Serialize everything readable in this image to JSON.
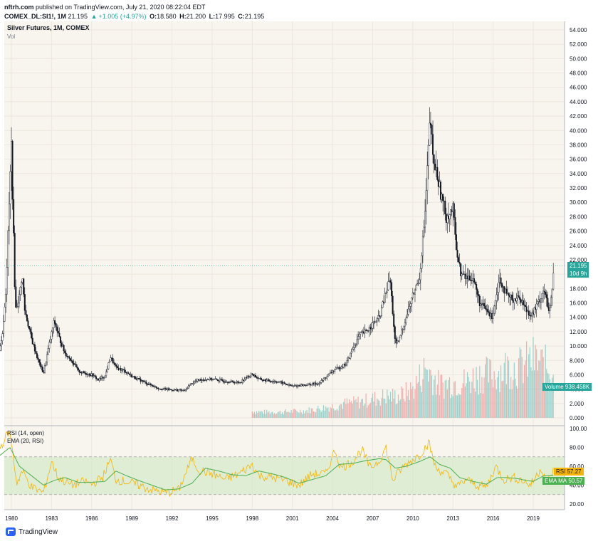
{
  "header": {
    "publisher": "nftrh.com",
    "published_text": "published on TradingView.com, July 21, 2020 08:22:04 EDT",
    "symbol": "COMEX_DL:SI1!, 1M",
    "last": "21.195",
    "change": "+1.005 (+4.97%)",
    "open_label": "O:",
    "open": "18.580",
    "high_label": "H:",
    "high": "21.200",
    "low_label": "L:",
    "low": "17.995",
    "close_label": "C:",
    "close": "21.195"
  },
  "chart_data": {
    "type": "candlestick",
    "title": "Silver Futures, 1M, COMEX",
    "volume_label": "Vol",
    "price_axis": {
      "min": 0,
      "max": 54,
      "ticks": [
        "54.000",
        "52.000",
        "50.000",
        "48.000",
        "46.000",
        "44.000",
        "42.000",
        "40.000",
        "38.000",
        "36.000",
        "34.000",
        "32.000",
        "30.000",
        "28.000",
        "26.000",
        "24.000",
        "22.000",
        "20.000",
        "18.000",
        "16.000",
        "14.000",
        "12.000",
        "10.000",
        "8.000",
        "6.000",
        "4.000",
        "2.000",
        "0.000"
      ]
    },
    "x_ticks": [
      "1980",
      "1983",
      "1986",
      "1989",
      "1992",
      "1995",
      "1998",
      "2001",
      "2004",
      "2007",
      "2010",
      "2013",
      "2016",
      "2019"
    ],
    "price_series": [
      [
        1979.0,
        9.0
      ],
      [
        1979.3,
        11.0
      ],
      [
        1979.6,
        18.0
      ],
      [
        1979.8,
        28.0
      ],
      [
        1980.0,
        38.0
      ],
      [
        1980.1,
        30.0
      ],
      [
        1980.3,
        15.0
      ],
      [
        1980.6,
        17.0
      ],
      [
        1980.8,
        20.0
      ],
      [
        1981.0,
        15.0
      ],
      [
        1981.5,
        11.0
      ],
      [
        1982.0,
        8.0
      ],
      [
        1982.4,
        6.2
      ],
      [
        1982.8,
        10.0
      ],
      [
        1983.2,
        13.5
      ],
      [
        1983.6,
        11.0
      ],
      [
        1984.0,
        9.0
      ],
      [
        1984.5,
        8.0
      ],
      [
        1985.0,
        6.5
      ],
      [
        1985.5,
        6.2
      ],
      [
        1986.0,
        6.0
      ],
      [
        1986.5,
        5.3
      ],
      [
        1987.0,
        5.8
      ],
      [
        1987.4,
        8.5
      ],
      [
        1987.8,
        7.0
      ],
      [
        1988.5,
        6.5
      ],
      [
        1989.0,
        5.8
      ],
      [
        1990.0,
        4.9
      ],
      [
        1991.0,
        4.1
      ],
      [
        1992.0,
        3.9
      ],
      [
        1993.0,
        3.8
      ],
      [
        1993.3,
        4.6
      ],
      [
        1994.0,
        5.3
      ],
      [
        1995.0,
        5.4
      ],
      [
        1996.0,
        5.1
      ],
      [
        1997.0,
        4.9
      ],
      [
        1998.0,
        6.1
      ],
      [
        1998.5,
        5.4
      ],
      [
        1999.0,
        5.2
      ],
      [
        2000.0,
        5.0
      ],
      [
        2001.0,
        4.4
      ],
      [
        2002.0,
        4.6
      ],
      [
        2003.0,
        4.8
      ],
      [
        2004.0,
        6.5
      ],
      [
        2005.0,
        7.5
      ],
      [
        2006.0,
        11.5
      ],
      [
        2006.5,
        12.0
      ],
      [
        2007.0,
        13.0
      ],
      [
        2007.5,
        14.0
      ],
      [
        2008.0,
        17.5
      ],
      [
        2008.3,
        19.5
      ],
      [
        2008.7,
        10.0
      ],
      [
        2009.0,
        11.0
      ],
      [
        2009.5,
        14.0
      ],
      [
        2010.0,
        17.0
      ],
      [
        2010.5,
        19.5
      ],
      [
        2010.9,
        28.0
      ],
      [
        2011.3,
        42.0
      ],
      [
        2011.5,
        36.0
      ],
      [
        2011.8,
        34.0
      ],
      [
        2012.0,
        32.0
      ],
      [
        2012.5,
        28.0
      ],
      [
        2013.0,
        29.0
      ],
      [
        2013.3,
        23.0
      ],
      [
        2013.6,
        20.0
      ],
      [
        2014.0,
        19.5
      ],
      [
        2014.5,
        19.5
      ],
      [
        2015.0,
        16.0
      ],
      [
        2015.5,
        15.0
      ],
      [
        2015.9,
        14.0
      ],
      [
        2016.5,
        19.5
      ],
      [
        2017.0,
        17.0
      ],
      [
        2017.5,
        16.5
      ],
      [
        2018.0,
        16.8
      ],
      [
        2018.5,
        15.0
      ],
      [
        2018.9,
        14.3
      ],
      [
        2019.5,
        16.5
      ],
      [
        2019.8,
        18.0
      ],
      [
        2020.2,
        14.5
      ],
      [
        2020.4,
        17.5
      ],
      [
        2020.55,
        21.195
      ]
    ],
    "volume_series": [
      [
        1998.0,
        0.9
      ],
      [
        1999.0,
        0.8
      ],
      [
        2000.0,
        0.8
      ],
      [
        2001.0,
        0.9
      ],
      [
        2002.0,
        1.0
      ],
      [
        2003.0,
        1.3
      ],
      [
        2004.0,
        1.6
      ],
      [
        2005.0,
        2.0
      ],
      [
        2006.0,
        2.2
      ],
      [
        2007.0,
        2.6
      ],
      [
        2008.0,
        3.0
      ],
      [
        2009.0,
        3.0
      ],
      [
        2010.0,
        4.0
      ],
      [
        2011.0,
        7.0
      ],
      [
        2012.0,
        4.5
      ],
      [
        2013.0,
        5.0
      ],
      [
        2014.0,
        5.0
      ],
      [
        2015.0,
        6.0
      ],
      [
        2016.0,
        6.0
      ],
      [
        2017.0,
        7.0
      ],
      [
        2018.0,
        7.0
      ],
      [
        2019.0,
        8.0
      ],
      [
        2020.0,
        7.0
      ]
    ],
    "last_price_tag": "21.195",
    "countdown_tag": "10d 9h",
    "volume_tag_label": "Volume",
    "volume_tag_value": "938.458K",
    "rsi": {
      "label": "RSI (14, open)",
      "ema_label": "EMA (20, RSI)",
      "axis_ticks": [
        "100.00",
        "80.00",
        "60.00",
        "40.00",
        "20.00"
      ],
      "axis_min": 14,
      "axis_max": 103,
      "band_upper": 70,
      "band_lower": 30,
      "rsi_value_label": "RSI",
      "rsi_value": "57.27",
      "ema_value_label": "EMA MA",
      "ema_value": "50.57",
      "rsi_series": [
        [
          1979.0,
          75
        ],
        [
          1979.8,
          97
        ],
        [
          1980.0,
          85
        ],
        [
          1980.4,
          42
        ],
        [
          1980.8,
          55
        ],
        [
          1981.5,
          38
        ],
        [
          1982.4,
          32
        ],
        [
          1983.0,
          65
        ],
        [
          1983.5,
          48
        ],
        [
          1984.5,
          40
        ],
        [
          1985.5,
          44
        ],
        [
          1986.0,
          41
        ],
        [
          1986.8,
          48
        ],
        [
          1987.4,
          67
        ],
        [
          1987.8,
          46
        ],
        [
          1988.5,
          44
        ],
        [
          1989.5,
          40
        ],
        [
          1990.5,
          35
        ],
        [
          1991.5,
          32
        ],
        [
          1992.5,
          35
        ],
        [
          1993.5,
          68
        ],
        [
          1994.0,
          56
        ],
        [
          1995.0,
          52
        ],
        [
          1996.0,
          46
        ],
        [
          1997.0,
          52
        ],
        [
          1998.0,
          62
        ],
        [
          1998.5,
          50
        ],
        [
          1999.5,
          48
        ],
        [
          2000.5,
          45
        ],
        [
          2001.5,
          40
        ],
        [
          2002.5,
          52
        ],
        [
          2003.5,
          52
        ],
        [
          2004.2,
          78
        ],
        [
          2004.6,
          58
        ],
        [
          2005.5,
          65
        ],
        [
          2006.2,
          78
        ],
        [
          2006.8,
          58
        ],
        [
          2007.5,
          66
        ],
        [
          2008.0,
          80
        ],
        [
          2008.5,
          45
        ],
        [
          2009.0,
          55
        ],
        [
          2009.5,
          62
        ],
        [
          2010.5,
          72
        ],
        [
          2011.2,
          85
        ],
        [
          2011.7,
          58
        ],
        [
          2012.5,
          52
        ],
        [
          2013.3,
          38
        ],
        [
          2014.0,
          46
        ],
        [
          2014.8,
          40
        ],
        [
          2015.5,
          38
        ],
        [
          2016.2,
          60
        ],
        [
          2016.8,
          46
        ],
        [
          2017.5,
          48
        ],
        [
          2018.2,
          45
        ],
        [
          2018.8,
          40
        ],
        [
          2019.6,
          58
        ],
        [
          2020.1,
          44
        ],
        [
          2020.55,
          57.27
        ]
      ],
      "ema_series": [
        [
          1979.0,
          70
        ],
        [
          1979.9,
          80
        ],
        [
          1980.6,
          60
        ],
        [
          1981.5,
          50
        ],
        [
          1982.4,
          40
        ],
        [
          1983.2,
          45
        ],
        [
          1984.0,
          48
        ],
        [
          1985.0,
          43
        ],
        [
          1986.0,
          43
        ],
        [
          1987.0,
          44
        ],
        [
          1987.8,
          55
        ],
        [
          1988.6,
          50
        ],
        [
          1989.5,
          45
        ],
        [
          1990.5,
          40
        ],
        [
          1991.5,
          35
        ],
        [
          1992.5,
          36
        ],
        [
          1993.5,
          42
        ],
        [
          1994.5,
          58
        ],
        [
          1995.5,
          55
        ],
        [
          1996.5,
          51
        ],
        [
          1997.5,
          50
        ],
        [
          1998.5,
          55
        ],
        [
          1999.5,
          52
        ],
        [
          2000.5,
          48
        ],
        [
          2001.5,
          42
        ],
        [
          2002.5,
          46
        ],
        [
          2003.5,
          50
        ],
        [
          2004.5,
          62
        ],
        [
          2005.5,
          63
        ],
        [
          2006.5,
          66
        ],
        [
          2007.5,
          68
        ],
        [
          2008.0,
          67
        ],
        [
          2008.7,
          58
        ],
        [
          2009.5,
          60
        ],
        [
          2010.5,
          65
        ],
        [
          2011.3,
          70
        ],
        [
          2012.0,
          62
        ],
        [
          2012.8,
          58
        ],
        [
          2013.5,
          48
        ],
        [
          2014.5,
          44
        ],
        [
          2015.5,
          41
        ],
        [
          2016.3,
          48
        ],
        [
          2017.0,
          48
        ],
        [
          2017.8,
          47
        ],
        [
          2018.5,
          45
        ],
        [
          2019.0,
          44
        ],
        [
          2019.8,
          50
        ],
        [
          2020.55,
          50.57
        ]
      ]
    }
  },
  "footer": {
    "brand": "TradingView"
  },
  "colors": {
    "bg": "#f8f5ee",
    "up": "#26a69a",
    "down": "#ef5350",
    "rsi_line": "#f5b400",
    "ema_line": "#4caf50",
    "band_fill": "#cfe8c4"
  }
}
